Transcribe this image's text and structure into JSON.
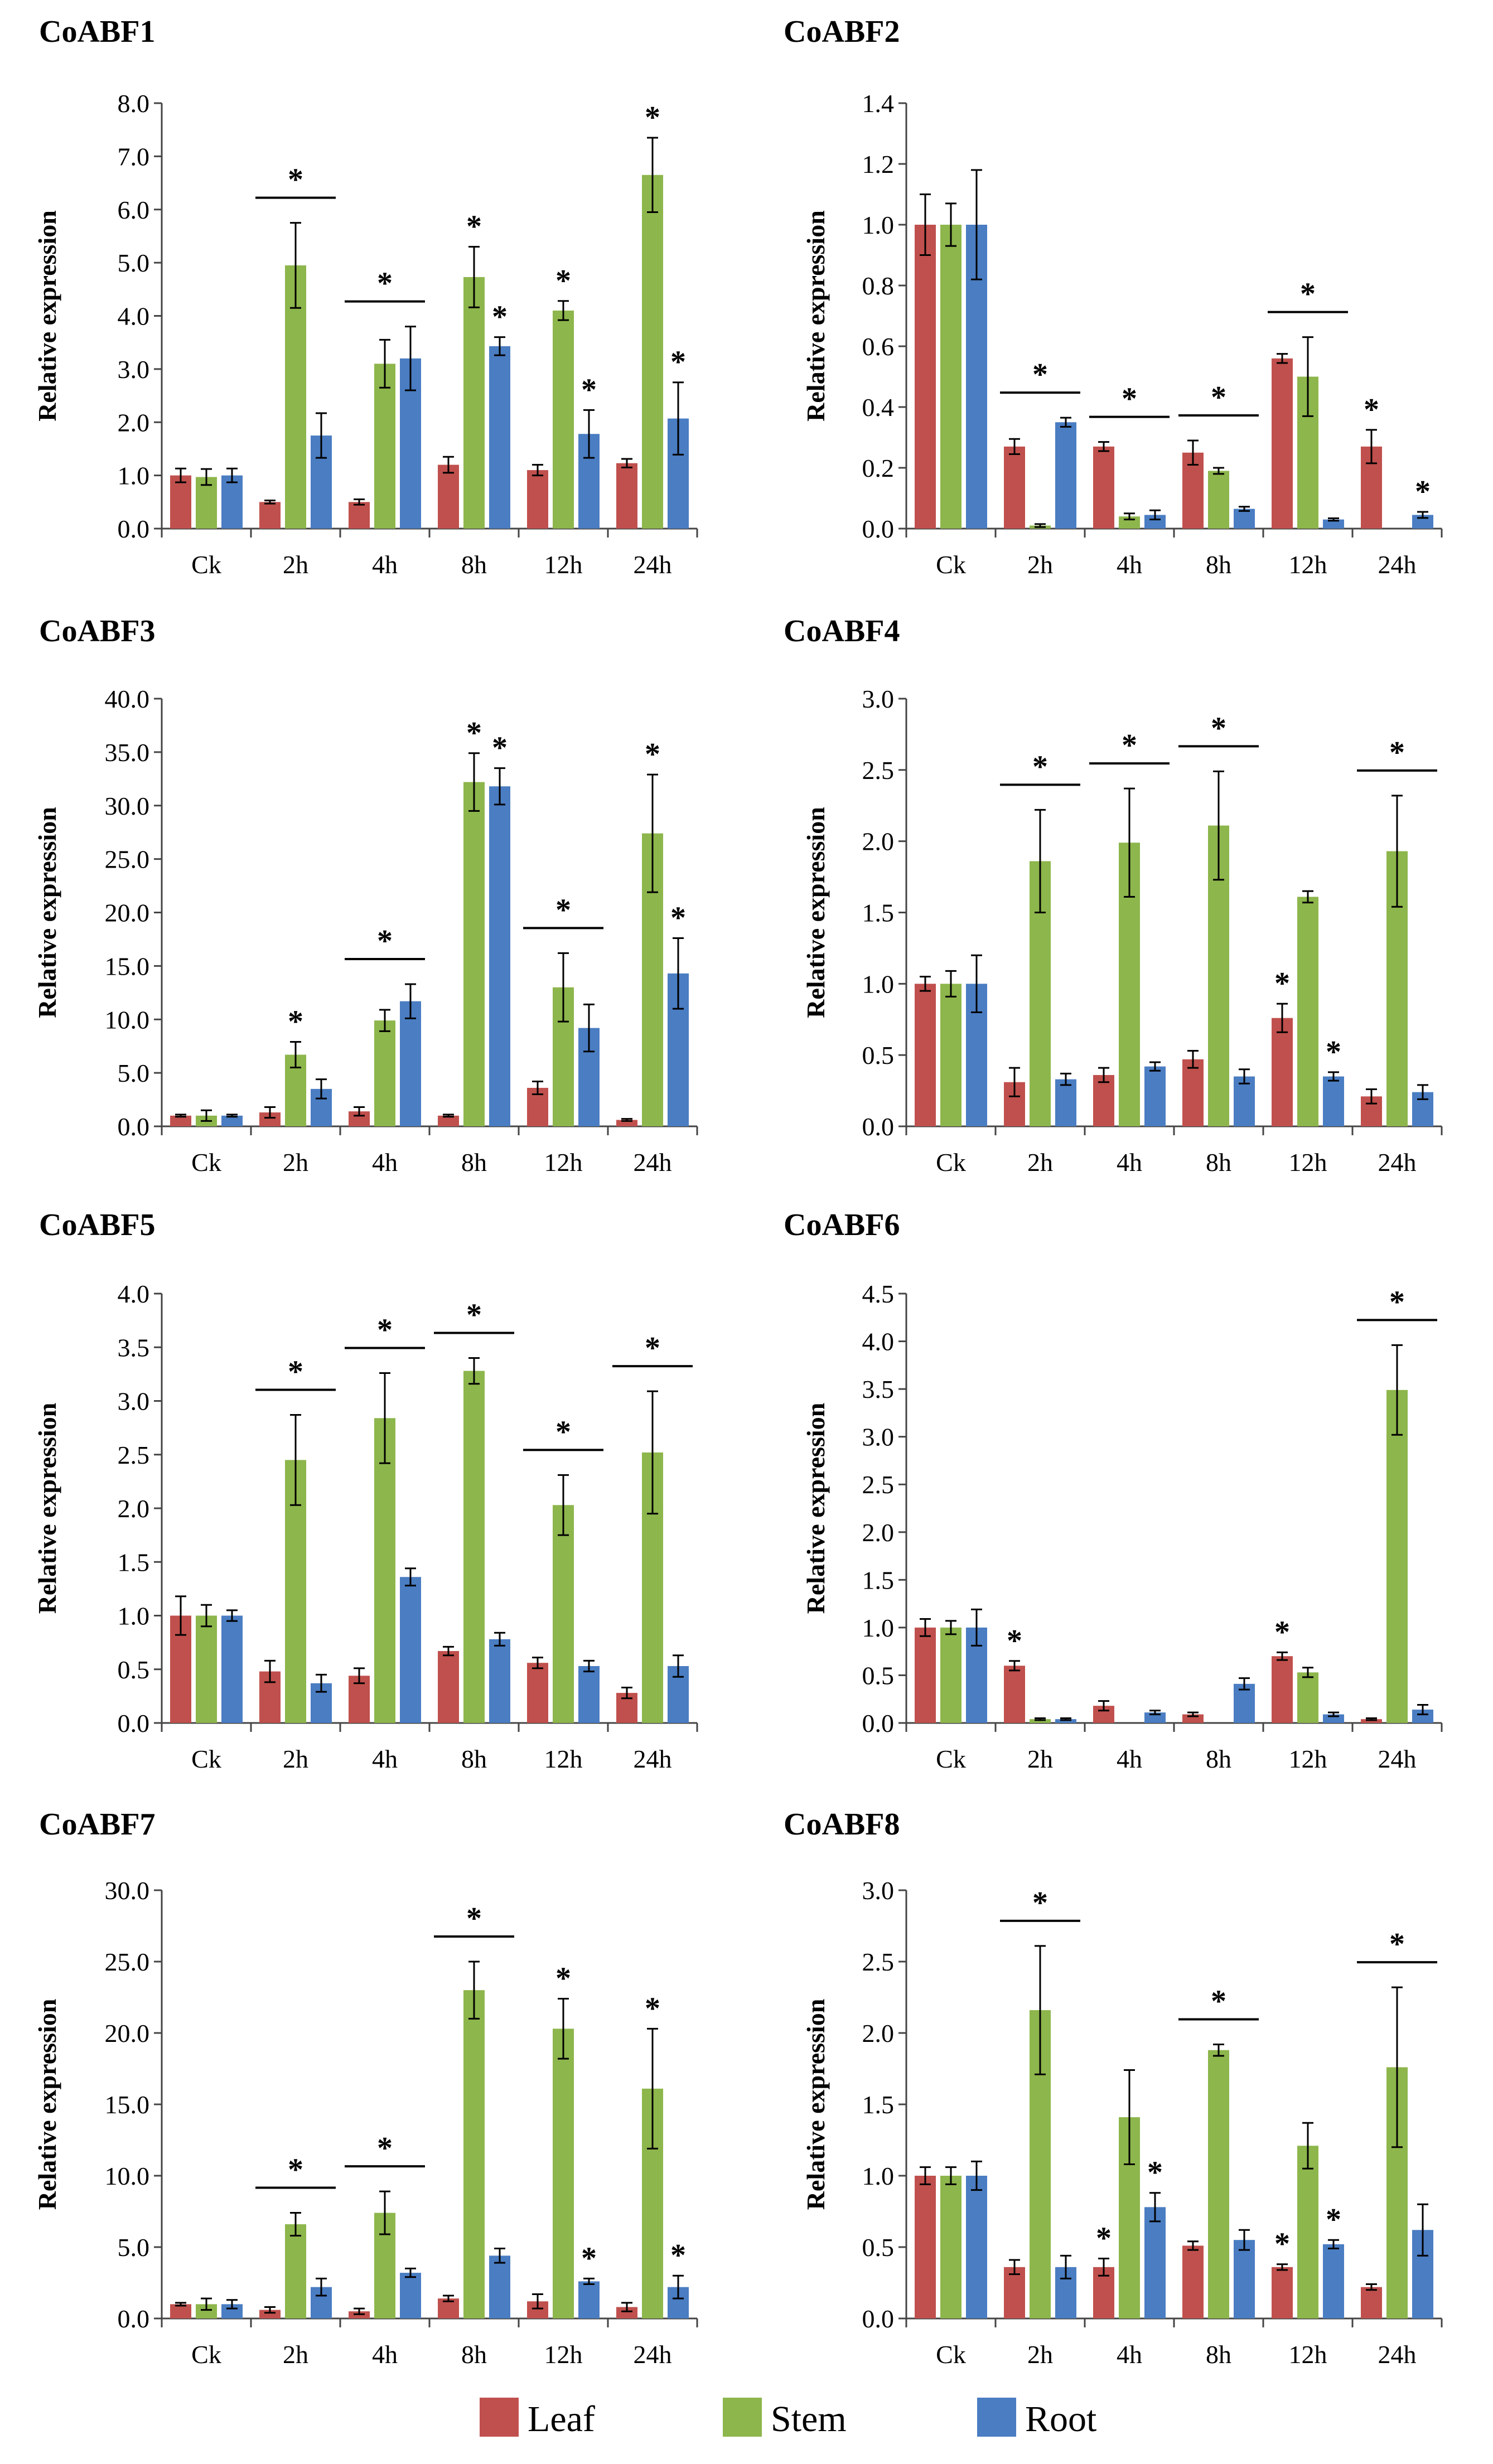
{
  "legend": [
    {
      "label": "Leaf",
      "color": "#C0504D"
    },
    {
      "label": "Stem",
      "color": "#8DB64C"
    },
    {
      "label": "Root",
      "color": "#4A7DC2"
    }
  ],
  "chart_data": [
    {
      "type": "bar",
      "title": "CoABF1",
      "ylabel": "Relative expression",
      "categories": [
        "Ck",
        "2h",
        "4h",
        "8h",
        "12h",
        "24h"
      ],
      "ylim": [
        0,
        8
      ],
      "yticks": [
        "0.0",
        "1.0",
        "2.0",
        "3.0",
        "4.0",
        "5.0",
        "6.0",
        "7.0",
        "8.0"
      ],
      "series": [
        {
          "name": "Leaf",
          "values": [
            1.0,
            0.5,
            0.5,
            1.2,
            1.1,
            1.23
          ],
          "errors": [
            0.13,
            0.03,
            0.05,
            0.15,
            0.1,
            0.08
          ]
        },
        {
          "name": "Stem",
          "values": [
            0.97,
            4.95,
            3.1,
            4.73,
            4.1,
            6.65
          ],
          "errors": [
            0.15,
            0.8,
            0.45,
            0.57,
            0.18,
            0.7
          ]
        },
        {
          "name": "Root",
          "values": [
            1.0,
            1.75,
            3.2,
            3.43,
            1.78,
            2.07
          ],
          "errors": [
            0.13,
            0.42,
            0.6,
            0.17,
            0.45,
            0.68
          ]
        }
      ],
      "stars": [
        {
          "cat": 1,
          "kind": "bar",
          "label": "*"
        },
        {
          "cat": 2,
          "kind": "bar",
          "label": "*"
        },
        {
          "cat": 3,
          "kind": "series",
          "series": 1,
          "label": "*"
        },
        {
          "cat": 3,
          "kind": "series",
          "series": 2,
          "label": "*"
        },
        {
          "cat": 4,
          "kind": "series",
          "series": 1,
          "label": "*"
        },
        {
          "cat": 4,
          "kind": "series",
          "series": 2,
          "label": "*"
        },
        {
          "cat": 5,
          "kind": "series",
          "series": 1,
          "label": "*"
        },
        {
          "cat": 5,
          "kind": "series",
          "series": 2,
          "label": "*"
        }
      ]
    },
    {
      "type": "bar",
      "title": "CoABF2",
      "ylabel": "Relative expression",
      "categories": [
        "Ck",
        "2h",
        "4h",
        "8h",
        "12h",
        "24h"
      ],
      "ylim": [
        0,
        1.4
      ],
      "yticks": [
        "0.0",
        "0.2",
        "0.4",
        "0.6",
        "0.8",
        "1.0",
        "1.2",
        "1.4"
      ],
      "series": [
        {
          "name": "Leaf",
          "values": [
            1.0,
            0.27,
            0.27,
            0.25,
            0.56,
            0.27
          ],
          "errors": [
            0.1,
            0.025,
            0.015,
            0.04,
            0.015,
            0.055
          ]
        },
        {
          "name": "Stem",
          "values": [
            1.0,
            0.01,
            0.04,
            0.19,
            0.5,
            0.0
          ],
          "errors": [
            0.07,
            0.005,
            0.01,
            0.01,
            0.13,
            0.0
          ]
        },
        {
          "name": "Root",
          "values": [
            1.0,
            0.35,
            0.045,
            0.065,
            0.03,
            0.045
          ],
          "errors": [
            0.18,
            0.015,
            0.015,
            0.007,
            0.004,
            0.01
          ]
        }
      ],
      "stars": [
        {
          "cat": 1,
          "kind": "bar",
          "label": "*"
        },
        {
          "cat": 2,
          "kind": "bar",
          "label": "*"
        },
        {
          "cat": 3,
          "kind": "bar",
          "label": "*"
        },
        {
          "cat": 4,
          "kind": "bar",
          "label": "*"
        },
        {
          "cat": 5,
          "kind": "series",
          "series": 0,
          "label": "*"
        },
        {
          "cat": 5,
          "kind": "series",
          "series": 2,
          "label": "*"
        }
      ]
    },
    {
      "type": "bar",
      "title": "CoABF3",
      "ylabel": "Relative expression",
      "categories": [
        "Ck",
        "2h",
        "4h",
        "8h",
        "12h",
        "24h"
      ],
      "ylim": [
        0,
        40
      ],
      "yticks": [
        "0.0",
        "5.0",
        "10.0",
        "15.0",
        "20.0",
        "25.0",
        "30.0",
        "35.0",
        "40.0"
      ],
      "series": [
        {
          "name": "Leaf",
          "values": [
            1.0,
            1.3,
            1.4,
            1.0,
            3.6,
            0.6
          ],
          "errors": [
            0.1,
            0.5,
            0.4,
            0.1,
            0.6,
            0.1
          ]
        },
        {
          "name": "Stem",
          "values": [
            1.0,
            6.7,
            9.9,
            32.2,
            13.0,
            27.4
          ],
          "errors": [
            0.5,
            1.2,
            1.0,
            2.7,
            3.2,
            5.5
          ]
        },
        {
          "name": "Root",
          "values": [
            1.0,
            3.5,
            11.7,
            31.8,
            9.2,
            14.3
          ],
          "errors": [
            0.1,
            0.9,
            1.6,
            1.7,
            2.2,
            3.3
          ]
        }
      ],
      "stars": [
        {
          "cat": 1,
          "kind": "series",
          "series": 1,
          "label": "*"
        },
        {
          "cat": 2,
          "kind": "bar",
          "label": "*"
        },
        {
          "cat": 3,
          "kind": "series",
          "series": 1,
          "label": "*"
        },
        {
          "cat": 3,
          "kind": "series",
          "series": 2,
          "label": "*"
        },
        {
          "cat": 4,
          "kind": "bar",
          "label": "*"
        },
        {
          "cat": 5,
          "kind": "series",
          "series": 1,
          "label": "*"
        },
        {
          "cat": 5,
          "kind": "series",
          "series": 2,
          "label": "*"
        }
      ]
    },
    {
      "type": "bar",
      "title": "CoABF4",
      "ylabel": "Relative expression",
      "categories": [
        "Ck",
        "2h",
        "4h",
        "8h",
        "12h",
        "24h"
      ],
      "ylim": [
        0,
        3
      ],
      "yticks": [
        "0.0",
        "0.5",
        "1.0",
        "1.5",
        "2.0",
        "2.5",
        "3.0"
      ],
      "series": [
        {
          "name": "Leaf",
          "values": [
            1.0,
            0.31,
            0.36,
            0.47,
            0.76,
            0.21
          ],
          "errors": [
            0.05,
            0.1,
            0.05,
            0.06,
            0.1,
            0.05
          ]
        },
        {
          "name": "Stem",
          "values": [
            1.0,
            1.86,
            1.99,
            2.11,
            1.61,
            1.93
          ],
          "errors": [
            0.09,
            0.36,
            0.38,
            0.38,
            0.04,
            0.39
          ]
        },
        {
          "name": "Root",
          "values": [
            1.0,
            0.33,
            0.42,
            0.35,
            0.35,
            0.24
          ],
          "errors": [
            0.2,
            0.04,
            0.03,
            0.05,
            0.03,
            0.05
          ]
        }
      ],
      "stars": [
        {
          "cat": 1,
          "kind": "bar",
          "label": "*"
        },
        {
          "cat": 2,
          "kind": "bar",
          "label": "*"
        },
        {
          "cat": 3,
          "kind": "bar",
          "label": "*"
        },
        {
          "cat": 4,
          "kind": "series",
          "series": 0,
          "label": "*"
        },
        {
          "cat": 4,
          "kind": "series",
          "series": 2,
          "label": "*"
        },
        {
          "cat": 5,
          "kind": "bar",
          "label": "*"
        }
      ]
    },
    {
      "type": "bar",
      "title": "CoABF5",
      "ylabel": "Relative expression",
      "categories": [
        "Ck",
        "2h",
        "4h",
        "8h",
        "12h",
        "24h"
      ],
      "ylim": [
        0,
        4
      ],
      "yticks": [
        "0.0",
        "0.5",
        "1.0",
        "1.5",
        "2.0",
        "2.5",
        "3.0",
        "3.5",
        "4.0"
      ],
      "series": [
        {
          "name": "Leaf",
          "values": [
            1.0,
            0.48,
            0.44,
            0.67,
            0.56,
            0.28
          ],
          "errors": [
            0.18,
            0.1,
            0.07,
            0.04,
            0.05,
            0.05
          ]
        },
        {
          "name": "Stem",
          "values": [
            1.0,
            2.45,
            2.84,
            3.28,
            2.03,
            2.52
          ],
          "errors": [
            0.1,
            0.42,
            0.42,
            0.12,
            0.28,
            0.57
          ]
        },
        {
          "name": "Root",
          "values": [
            1.0,
            0.37,
            1.36,
            0.78,
            0.53,
            0.53
          ],
          "errors": [
            0.05,
            0.08,
            0.08,
            0.06,
            0.05,
            0.1
          ]
        }
      ],
      "stars": [
        {
          "cat": 1,
          "kind": "bar",
          "label": "*"
        },
        {
          "cat": 2,
          "kind": "bar",
          "label": "*"
        },
        {
          "cat": 3,
          "kind": "bar",
          "label": "*"
        },
        {
          "cat": 4,
          "kind": "bar",
          "label": "*"
        },
        {
          "cat": 5,
          "kind": "bar",
          "label": "*"
        }
      ]
    },
    {
      "type": "bar",
      "title": "CoABF6",
      "ylabel": "Relative expression",
      "categories": [
        "Ck",
        "2h",
        "4h",
        "8h",
        "12h",
        "24h"
      ],
      "ylim": [
        0,
        4.5
      ],
      "yticks": [
        "0.0",
        "0.5",
        "1.0",
        "1.5",
        "2.0",
        "2.5",
        "3.0",
        "3.5",
        "4.0",
        "4.5"
      ],
      "series": [
        {
          "name": "Leaf",
          "values": [
            1.0,
            0.6,
            0.18,
            0.09,
            0.7,
            0.04
          ],
          "errors": [
            0.09,
            0.05,
            0.05,
            0.02,
            0.04,
            0.01
          ]
        },
        {
          "name": "Stem",
          "values": [
            1.0,
            0.04,
            0.0,
            0.0,
            0.53,
            3.49
          ],
          "errors": [
            0.07,
            0.01,
            0.0,
            0.0,
            0.05,
            0.47
          ]
        },
        {
          "name": "Root",
          "values": [
            1.0,
            0.04,
            0.11,
            0.41,
            0.09,
            0.14
          ],
          "errors": [
            0.19,
            0.01,
            0.02,
            0.06,
            0.02,
            0.05
          ]
        }
      ],
      "stars": [
        {
          "cat": 1,
          "kind": "series",
          "series": 0,
          "label": "*"
        },
        {
          "cat": 4,
          "kind": "series",
          "series": 0,
          "label": "*"
        },
        {
          "cat": 5,
          "kind": "bar",
          "label": "*"
        }
      ]
    },
    {
      "type": "bar",
      "title": "CoABF7",
      "ylabel": "Relative expression",
      "categories": [
        "Ck",
        "2h",
        "4h",
        "8h",
        "12h",
        "24h"
      ],
      "ylim": [
        0,
        30
      ],
      "yticks": [
        "0.0",
        "5.0",
        "10.0",
        "15.0",
        "20.0",
        "25.0",
        "30.0"
      ],
      "series": [
        {
          "name": "Leaf",
          "values": [
            1.0,
            0.6,
            0.5,
            1.4,
            1.2,
            0.8
          ],
          "errors": [
            0.1,
            0.2,
            0.2,
            0.2,
            0.5,
            0.3
          ]
        },
        {
          "name": "Stem",
          "values": [
            1.0,
            6.6,
            7.4,
            23.0,
            20.3,
            16.1
          ],
          "errors": [
            0.4,
            0.8,
            1.5,
            2.0,
            2.1,
            4.2
          ]
        },
        {
          "name": "Root",
          "values": [
            1.0,
            2.2,
            3.2,
            4.4,
            2.6,
            2.2
          ],
          "errors": [
            0.3,
            0.6,
            0.3,
            0.5,
            0.2,
            0.8
          ]
        }
      ],
      "stars": [
        {
          "cat": 1,
          "kind": "bar",
          "label": "*"
        },
        {
          "cat": 2,
          "kind": "bar",
          "label": "*"
        },
        {
          "cat": 3,
          "kind": "bar",
          "label": "*"
        },
        {
          "cat": 4,
          "kind": "series",
          "series": 1,
          "label": "*"
        },
        {
          "cat": 4,
          "kind": "series",
          "series": 2,
          "label": "*"
        },
        {
          "cat": 5,
          "kind": "series",
          "series": 1,
          "label": "*"
        },
        {
          "cat": 5,
          "kind": "series",
          "series": 2,
          "label": "*"
        }
      ]
    },
    {
      "type": "bar",
      "title": "CoABF8",
      "ylabel": "Relative expression",
      "categories": [
        "Ck",
        "2h",
        "4h",
        "8h",
        "12h",
        "24h"
      ],
      "ylim": [
        0,
        3
      ],
      "yticks": [
        "0.0",
        "0.5",
        "1.0",
        "1.5",
        "2.0",
        "2.5",
        "3.0"
      ],
      "series": [
        {
          "name": "Leaf",
          "values": [
            1.0,
            0.36,
            0.36,
            0.51,
            0.36,
            0.22
          ],
          "errors": [
            0.06,
            0.05,
            0.06,
            0.03,
            0.02,
            0.02
          ]
        },
        {
          "name": "Stem",
          "values": [
            1.0,
            2.16,
            1.41,
            1.88,
            1.21,
            1.76
          ],
          "errors": [
            0.06,
            0.45,
            0.33,
            0.04,
            0.16,
            0.56
          ]
        },
        {
          "name": "Root",
          "values": [
            1.0,
            0.36,
            0.78,
            0.55,
            0.52,
            0.62
          ],
          "errors": [
            0.1,
            0.08,
            0.1,
            0.07,
            0.03,
            0.18
          ]
        }
      ],
      "stars": [
        {
          "cat": 1,
          "kind": "bar",
          "label": "*"
        },
        {
          "cat": 2,
          "kind": "series",
          "series": 0,
          "label": "*"
        },
        {
          "cat": 2,
          "kind": "series",
          "series": 2,
          "label": "*"
        },
        {
          "cat": 3,
          "kind": "bar",
          "label": "*"
        },
        {
          "cat": 4,
          "kind": "series",
          "series": 0,
          "label": "*"
        },
        {
          "cat": 4,
          "kind": "series",
          "series": 2,
          "label": "*"
        },
        {
          "cat": 5,
          "kind": "bar",
          "label": "*"
        }
      ]
    }
  ]
}
